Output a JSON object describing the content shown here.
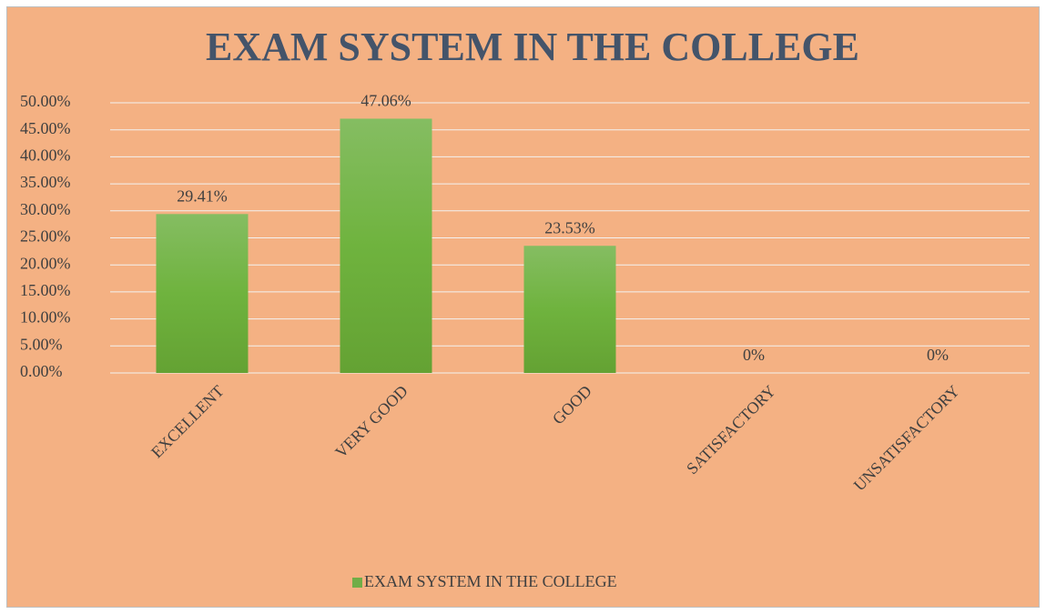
{
  "chart_data": {
    "type": "bar",
    "title": "EXAM SYSTEM IN THE COLLEGE",
    "categories": [
      "EXCELLENT",
      "VERY GOOD",
      "GOOD",
      "SATISFACTORY",
      "UNSATISFACTORY"
    ],
    "series": [
      {
        "name": "EXAM SYSTEM IN THE COLLEGE",
        "color": "#70ad47",
        "values": [
          29.41,
          47.06,
          23.53,
          0,
          0
        ],
        "value_labels": [
          "29.41%",
          "47.06%",
          "23.53%",
          "0%",
          "0%"
        ]
      }
    ],
    "ylim": [
      0,
      50
    ],
    "yticks": [
      {
        "value": 0,
        "label": "0.00%"
      },
      {
        "value": 5,
        "label": "5.00%"
      },
      {
        "value": 10,
        "label": "10.00%"
      },
      {
        "value": 15,
        "label": "15.00%"
      },
      {
        "value": 20,
        "label": "20.00%"
      },
      {
        "value": 25,
        "label": "25.00%"
      },
      {
        "value": 30,
        "label": "30.00%"
      },
      {
        "value": 35,
        "label": "35.00%"
      },
      {
        "value": 40,
        "label": "40.00%"
      },
      {
        "value": 45,
        "label": "45.00%"
      },
      {
        "value": 50,
        "label": "50.00%"
      }
    ],
    "grid": true,
    "legend": "bottom"
  }
}
